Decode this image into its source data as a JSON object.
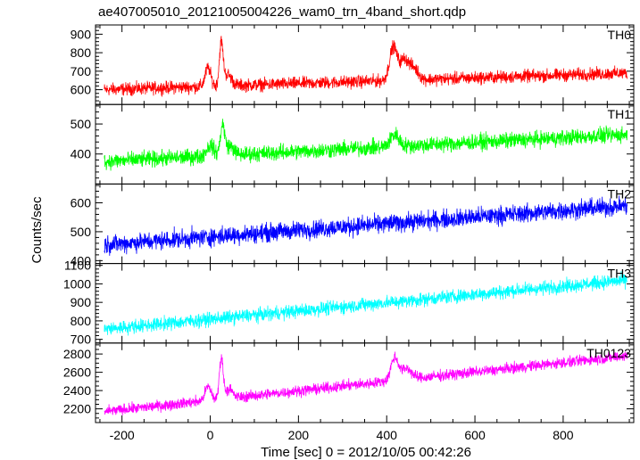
{
  "chart_data": {
    "type": "line",
    "title": "ae407005010_20121005004226_wam0_trn_4band_short.qdp",
    "xlabel": "Time [sec] 0 = 2012/10/05 00:42:26",
    "ylabel": "Counts/sec",
    "xlim": [
      -260,
      960
    ],
    "xticks": [
      -200,
      0,
      200,
      400,
      600,
      800
    ],
    "x_minor_step": 50,
    "panels": [
      {
        "name": "TH0",
        "color": "#ff0000",
        "ylim": [
          520,
          950
        ],
        "yticks": [
          600,
          700,
          800,
          900
        ],
        "y_minor_step": 20,
        "base_start": 600,
        "base_end": 690,
        "x_start": -240,
        "x_end": 945,
        "noise_amplitude": 26,
        "features": [
          {
            "x": -5,
            "height": 100,
            "width": 9
          },
          {
            "x": 25,
            "height": 230,
            "width": 6
          },
          {
            "x": 40,
            "height": 60,
            "width": 12
          },
          {
            "x": 415,
            "height": 180,
            "width": 12
          },
          {
            "x": 440,
            "height": 110,
            "width": 14
          },
          {
            "x": 462,
            "height": 60,
            "width": 14
          }
        ]
      },
      {
        "name": "TH1",
        "color": "#00ff00",
        "ylim": [
          300,
          565
        ],
        "yticks": [
          400,
          500
        ],
        "y_minor_step": 20,
        "base_start": 375,
        "base_end": 465,
        "x_start": -240,
        "x_end": 945,
        "noise_amplitude": 20,
        "features": [
          {
            "x": 0,
            "height": 35,
            "width": 12
          },
          {
            "x": 28,
            "height": 100,
            "width": 7
          },
          {
            "x": 45,
            "height": 30,
            "width": 12
          },
          {
            "x": 418,
            "height": 40,
            "width": 14
          }
        ]
      },
      {
        "name": "TH2",
        "color": "#0000ff",
        "ylim": [
          390,
          665
        ],
        "yticks": [
          400,
          500,
          600
        ],
        "y_minor_step": 20,
        "base_start": 455,
        "base_end": 590,
        "x_start": -240,
        "x_end": 945,
        "noise_amplitude": 24,
        "features": []
      },
      {
        "name": "TH3",
        "color": "#00ffff",
        "ylim": [
          680,
          1110
        ],
        "yticks": [
          700,
          800,
          900,
          1000,
          1100
        ],
        "y_minor_step": 20,
        "base_start": 755,
        "base_end": 1020,
        "x_start": -240,
        "x_end": 945,
        "noise_amplitude": 28,
        "features": []
      },
      {
        "name": "TH0123",
        "color": "#ff00ff",
        "ylim": [
          2050,
          2920
        ],
        "yticks": [
          2200,
          2400,
          2600,
          2800
        ],
        "y_minor_step": 50,
        "base_start": 2170,
        "base_end": 2780,
        "x_start": -240,
        "x_end": 945,
        "noise_amplitude": 45,
        "features": [
          {
            "x": -5,
            "height": 150,
            "width": 10
          },
          {
            "x": 25,
            "height": 450,
            "width": 6
          },
          {
            "x": 42,
            "height": 100,
            "width": 12
          },
          {
            "x": 418,
            "height": 250,
            "width": 12
          },
          {
            "x": 445,
            "height": 120,
            "width": 16
          }
        ]
      }
    ]
  }
}
